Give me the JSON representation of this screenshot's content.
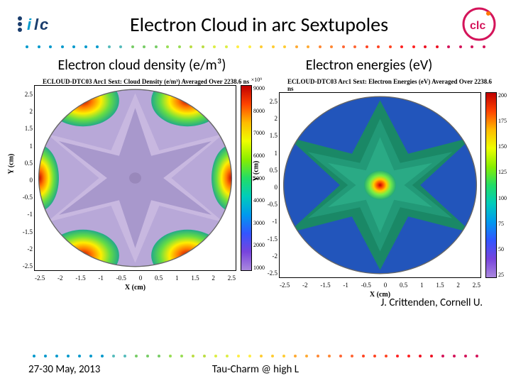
{
  "header": {
    "title": "Electron Cloud in arc Sextupoles",
    "logo_left_text": "ilc",
    "logo_left_color1": "#1a3d6d",
    "logo_left_color2": "#0099cc",
    "logo_right_text": "clc",
    "logo_right_color1": "#d4145a",
    "logo_right_color2": "#ff7700"
  },
  "dotted_colors": [
    "#0099cc",
    "#0099cc",
    "#0099cc",
    "#5bb",
    "#7c6",
    "#9d5",
    "#bd4",
    "#de4",
    "#fe4",
    "#fc3",
    "#fa3",
    "#f83",
    "#f63",
    "#f42",
    "#f22",
    "#e12",
    "#d4145a",
    "#d4145a"
  ],
  "subtitles": {
    "left": "Electron cloud density (e/m³)",
    "right": "Electron energies (eV)"
  },
  "plot_left": {
    "title": "ECLOUD-DTC03 Arc1 Sext: Cloud Density (e/m³) Averaged Over 2238.6 ns",
    "y_ticks": [
      "2.5",
      "2",
      "1.5",
      "1",
      "0.5",
      "0",
      "-0.5",
      "-1",
      "-1.5",
      "-2",
      "-2.5"
    ],
    "x_ticks": [
      "-2.5",
      "-2",
      "-1.5",
      "-1",
      "-0.5",
      "0",
      "0.5",
      "1",
      "1.5",
      "2",
      "2.5"
    ],
    "x_label": "X (cm)",
    "y_label": "Y (cm)",
    "cbar_exp": "×10⁹",
    "cbar_ticks": [
      "9000",
      "8000",
      "7000",
      "6000",
      "5000",
      "4000",
      "3000",
      "2000",
      "1000"
    ],
    "cbar_gradient": "linear-gradient(to bottom,#c00000,#ff4400,#ffbb00,#eeff00,#88ee00,#22dd66,#00ccbb,#0099ee,#3355ff,#7744dd,#aa88dd)",
    "bg_fill": "#b8a8d8"
  },
  "plot_right": {
    "title": "ECLOUD-DTC03 Arc1 Sext: Electron Energies (eV) Averaged Over 2238.6 ns",
    "y_ticks": [
      "2.5",
      "2",
      "1.5",
      "1",
      "0.5",
      "0",
      "-0.5",
      "-1",
      "-1.5",
      "-2",
      "-2.5"
    ],
    "x_ticks": [
      "-2.5",
      "-2",
      "-1.5",
      "-1",
      "-0.5",
      "0",
      "0.5",
      "1",
      "1.5",
      "2",
      "2.5"
    ],
    "x_label": "X (cm)",
    "y_label": "Y (cm)",
    "cbar_ticks": [
      "200",
      "175",
      "150",
      "125",
      "100",
      "75",
      "50",
      "25"
    ],
    "cbar_gradient": "linear-gradient(to bottom,#c00000,#ff4400,#ffbb00,#eeff00,#88ee00,#22dd66,#00ccbb,#0099ee,#3355ff,#7744dd,#aa88dd)",
    "bg_fill": "#1a7a5a"
  },
  "attribution": "J. Crittenden, Cornell U.",
  "footer": {
    "left": "27-30 May, 2013",
    "center": "Tau-Charm @ high L"
  }
}
